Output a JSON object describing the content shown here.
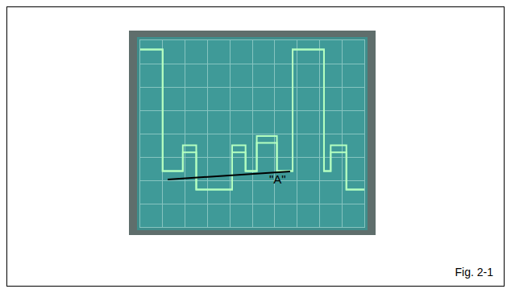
{
  "chart_data": {
    "type": "line",
    "caption": "Fig. 2-1",
    "annotations": [
      {
        "text": "\"A\""
      }
    ],
    "x": [
      0,
      1.0,
      1.9,
      2.5,
      4.1,
      4.7,
      5.2,
      6.1,
      6.8,
      8.2,
      8.5,
      9.2,
      10
    ],
    "series": [
      {
        "color": "#b4ffc0",
        "values": [
          7.6,
          2.4,
          3.5,
          1.6,
          3.5,
          2.4,
          3.9,
          2.4,
          7.6,
          2.4,
          3.5,
          1.6,
          1.6
        ]
      },
      {
        "color": "#b4ffc0",
        "values": [
          7.6,
          2.4,
          3.2,
          1.6,
          3.2,
          2.4,
          3.6,
          2.4,
          7.6,
          2.4,
          3.2,
          1.6,
          1.6
        ]
      }
    ],
    "xlim": [
      0,
      10
    ],
    "ylim": [
      0,
      8
    ],
    "xticks": [
      0,
      1,
      2,
      3,
      4,
      5,
      6,
      7,
      8,
      9,
      10
    ],
    "yticks": [
      0,
      1,
      2,
      3,
      4,
      5,
      6,
      7,
      8
    ],
    "grid": true,
    "tick_labels": false
  }
}
